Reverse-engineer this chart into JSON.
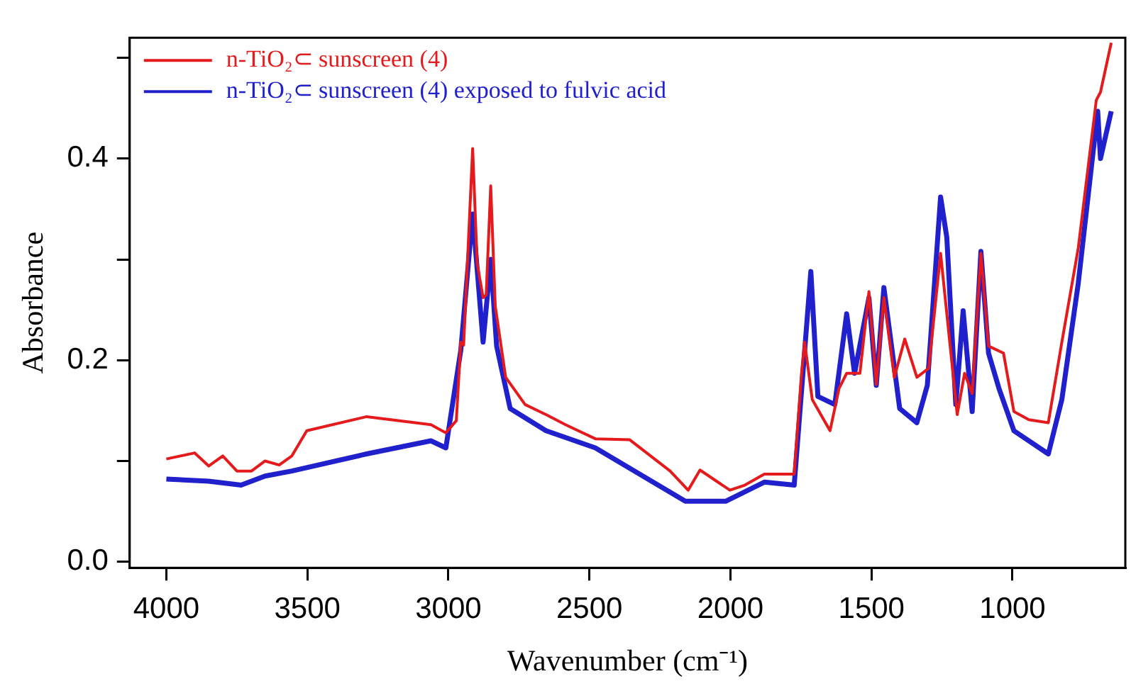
{
  "chart_data": {
    "type": "line",
    "xlabel": "Wavenumber (cm⁻¹)",
    "ylabel": "Absorbance",
    "xlim": [
      4130,
      600
    ],
    "ylim": [
      -0.006,
      0.52
    ],
    "xticks": [
      4000,
      3500,
      3000,
      2500,
      2000,
      1500,
      1000
    ],
    "yticks": [
      {
        "value": 0,
        "label": "0.0"
      },
      {
        "value": 0.1,
        "label": null
      },
      {
        "value": 0.2,
        "label": "0.2"
      },
      {
        "value": 0.3,
        "label": null
      },
      {
        "value": 0.4,
        "label": "0.4"
      },
      {
        "value": 0.5,
        "label": null
      }
    ],
    "grid": false,
    "legend": "top left",
    "marker": "none",
    "line_style": "solid",
    "series": [
      {
        "name": "n-TiO₂⊂ sunscreen (4)",
        "color": "#e41a1c",
        "x": [
          4000,
          3900,
          3850,
          3800,
          3750,
          3698,
          3650,
          3600,
          3555,
          3502,
          3290,
          3062,
          3009,
          2972,
          2956,
          2946,
          2914,
          2898,
          2877,
          2866,
          2850,
          2834,
          2797,
          2728,
          2654,
          2585,
          2479,
          2357,
          2214,
          2150,
          2108,
          2002,
          1949,
          1880,
          1774,
          1748,
          1737,
          1710,
          1647,
          1615,
          1588,
          1541,
          1509,
          1483,
          1456,
          1419,
          1382,
          1339,
          1297,
          1255,
          1196,
          1170,
          1143,
          1112,
          1085,
          1032,
          995,
          942,
          873,
          825,
          767,
          703,
          688,
          650
        ],
        "values": [
          0.102,
          0.108,
          0.095,
          0.105,
          0.09,
          0.09,
          0.1,
          0.096,
          0.105,
          0.13,
          0.144,
          0.136,
          0.128,
          0.14,
          0.218,
          0.215,
          0.41,
          0.296,
          0.262,
          0.265,
          0.373,
          0.254,
          0.183,
          0.156,
          0.146,
          0.136,
          0.122,
          0.121,
          0.09,
          0.071,
          0.091,
          0.071,
          0.076,
          0.087,
          0.087,
          0.187,
          0.218,
          0.161,
          0.13,
          0.172,
          0.187,
          0.187,
          0.268,
          0.176,
          0.262,
          0.183,
          0.221,
          0.183,
          0.192,
          0.306,
          0.146,
          0.187,
          0.167,
          0.306,
          0.214,
          0.207,
          0.149,
          0.141,
          0.138,
          0.218,
          0.311,
          0.458,
          0.466,
          0.515
        ]
      },
      {
        "name": "n-TiO₂⊂ sunscreen (4) exposed to fulvic acid",
        "color": "#2020cc",
        "x": [
          4000,
          3850,
          3735,
          3650,
          3555,
          3290,
          3062,
          3009,
          2956,
          2914,
          2877,
          2850,
          2829,
          2781,
          2654,
          2479,
          2160,
          2017,
          1880,
          1774,
          1715,
          1690,
          1630,
          1588,
          1560,
          1509,
          1483,
          1456,
          1400,
          1339,
          1302,
          1255,
          1233,
          1201,
          1175,
          1143,
          1112,
          1085,
          1048,
          995,
          873,
          825,
          767,
          698,
          688,
          650
        ],
        "values": [
          0.082,
          0.08,
          0.076,
          0.085,
          0.09,
          0.107,
          0.12,
          0.113,
          0.21,
          0.345,
          0.218,
          0.3,
          0.214,
          0.152,
          0.13,
          0.113,
          0.06,
          0.06,
          0.079,
          0.076,
          0.288,
          0.164,
          0.156,
          0.246,
          0.187,
          0.262,
          0.175,
          0.272,
          0.152,
          0.138,
          0.175,
          0.362,
          0.322,
          0.156,
          0.249,
          0.149,
          0.308,
          0.207,
          0.172,
          0.13,
          0.107,
          0.161,
          0.276,
          0.447,
          0.4,
          0.447
        ]
      }
    ]
  }
}
